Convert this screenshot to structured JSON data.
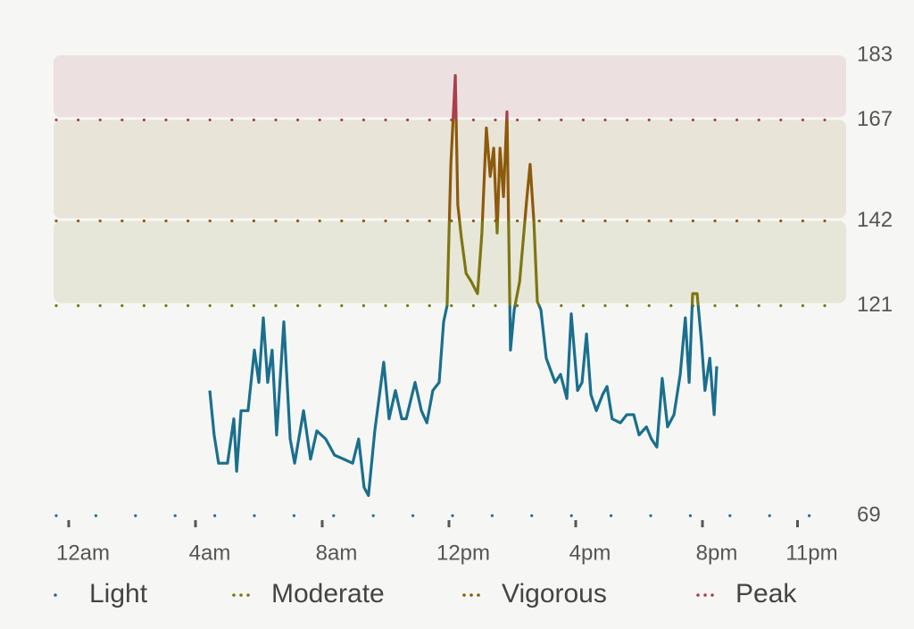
{
  "chart_data": {
    "type": "line",
    "x": [
      4.45,
      4.59,
      4.73,
      5.01,
      5.21,
      5.3,
      5.44,
      5.66,
      5.86,
      6.0,
      6.14,
      6.28,
      6.42,
      6.56,
      6.79,
      6.99,
      7.13,
      7.41,
      7.63,
      7.83,
      8.11,
      8.39,
      8.68,
      8.96,
      9.15,
      9.32,
      9.46,
      9.66,
      9.94,
      10.11,
      10.31,
      10.51,
      10.65,
      10.93,
      11.13,
      11.3,
      11.49,
      11.69,
      11.83,
      11.94,
      12.06,
      12.2,
      12.28,
      12.39,
      12.54,
      12.7,
      12.9,
      13.04,
      13.18,
      13.3,
      13.41,
      13.52,
      13.61,
      13.72,
      13.83,
      13.94,
      14.06,
      14.23,
      14.45,
      14.56,
      14.68,
      14.79,
      14.9,
      15.07,
      15.35,
      15.52,
      15.72,
      15.86,
      16.06,
      16.2,
      16.34,
      16.48,
      16.65,
      16.85,
      16.99,
      17.15,
      17.41,
      17.61,
      17.83,
      18.0,
      18.23,
      18.39,
      18.56,
      18.73,
      18.9,
      19.1,
      19.3,
      19.46,
      19.58,
      19.69,
      19.83,
      19.97,
      20.08,
      20.23,
      20.37,
      20.45
    ],
    "series": [
      {
        "values": [
          100,
          89,
          82,
          82,
          93,
          80,
          95,
          95,
          110,
          102,
          118,
          102,
          110,
          89,
          117,
          88,
          82,
          95,
          83,
          90,
          88,
          84,
          83,
          82,
          88,
          76,
          74,
          90,
          107,
          93,
          100,
          93,
          93,
          102,
          95,
          92,
          100,
          102,
          117,
          121,
          156,
          178,
          146,
          138,
          129,
          127,
          124,
          139,
          165,
          153,
          160,
          139,
          160,
          148,
          169,
          110,
          120,
          127,
          147,
          156,
          142,
          122,
          120,
          108,
          102,
          104,
          98,
          119,
          100,
          102,
          114,
          99,
          95,
          99,
          101,
          93,
          92,
          94,
          94,
          89,
          91,
          88,
          86,
          103,
          91,
          94,
          104,
          118,
          102,
          124,
          124,
          112,
          100,
          108,
          94,
          106
        ]
      }
    ],
    "xlim": [
      0,
      24
    ],
    "xticks": [
      {
        "value": 0,
        "label": "12am"
      },
      {
        "value": 4,
        "label": "4am"
      },
      {
        "value": 8,
        "label": "8am"
      },
      {
        "value": 12,
        "label": "12pm"
      },
      {
        "value": 16,
        "label": "4pm"
      },
      {
        "value": 20,
        "label": "8pm"
      },
      {
        "value": 23,
        "label": "11pm"
      }
    ],
    "ylim": [
      69,
      183
    ],
    "yticks": [
      69,
      121,
      142,
      167,
      183
    ],
    "zones": [
      {
        "name": "Light",
        "color": "#1b6f8e",
        "min": 69,
        "max": 121,
        "band": false
      },
      {
        "name": "Moderate",
        "color": "#7d7612",
        "min": 121,
        "max": 142,
        "band": true
      },
      {
        "name": "Vigorous",
        "color": "#8c5a0c",
        "min": 142,
        "max": 167,
        "band": true
      },
      {
        "name": "Peak",
        "color": "#a8404c",
        "min": 167,
        "max": 183,
        "band": true
      }
    ]
  }
}
